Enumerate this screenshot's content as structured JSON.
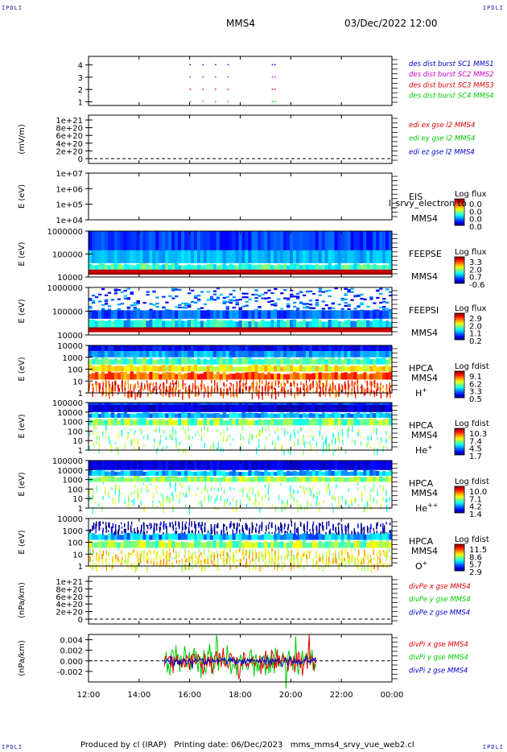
{
  "header": {
    "corner_tl": "IPDLI",
    "corner_tr": "IPDLI",
    "corner_bl": "IPDLI",
    "corner_br": "IPDLI",
    "spacecraft": "MMS4",
    "datetime": "03/Dec/2022 12:00"
  },
  "footer": {
    "produced_by": "Produced by cl (IRAP)",
    "printing_date": "Printing date: 06/Dec/2023",
    "file": "mms_mms4_srvy_vue_web2.cl"
  },
  "colors": {
    "red": "#dd0000",
    "green": "#00cc00",
    "blue": "#0000cc",
    "magenta": "#cc00cc"
  },
  "chart_data": [
    {
      "id": "burst",
      "type": "scatter",
      "ylabel": "",
      "yticks": [
        "4",
        "3",
        "2",
        "1"
      ],
      "legend": [
        "des dist burst SC1 MMS1",
        "des dist burst SC2 MMS2",
        "des dist burst SC3 MMS3",
        "des dist burst SC4 MMS4"
      ],
      "series_colors": [
        "#0000cc",
        "#cc00cc",
        "#dd0000",
        "#00cc00"
      ],
      "x": [
        16.0,
        16.5,
        17.0,
        17.5,
        19.25,
        19.35
      ]
    },
    {
      "id": "edi",
      "type": "line",
      "ylabel": "(mV/m)",
      "yticks": [
        "1e+21",
        "8e+20",
        "6e+20",
        "4e+20",
        "2e+20",
        "0"
      ],
      "legend": [
        "edi ex gse l2 MMS4",
        "edi ey gse l2 MMS4",
        "edi ez gse l2 MMS4"
      ],
      "series_colors": [
        "#dd0000",
        "#00cc00",
        "#0000cc"
      ]
    },
    {
      "id": "eis",
      "type": "heatmap",
      "ylabel": "E (eV)",
      "yticks": [
        "1e+07",
        "1e+06",
        "1e+05",
        "1e+04"
      ],
      "instrument": "EIS",
      "overlay_text": "l_srvy_electron to",
      "spacecraft": "MMS4",
      "colorbar_title": "Log flux",
      "colorbar_ticks": [
        "0.0",
        "0.0",
        "0.0",
        "0.0"
      ]
    },
    {
      "id": "feepse",
      "type": "heatmap",
      "ylabel": "E (eV)",
      "yticks": [
        "1000000",
        "100000",
        "10000"
      ],
      "instrument": "FEEPSE",
      "spacecraft": "MMS4",
      "colorbar_title": "Log flux",
      "colorbar_ticks": [
        "3.3",
        "2.0",
        "0.7",
        "-0.6"
      ]
    },
    {
      "id": "feepsi",
      "type": "heatmap",
      "ylabel": "E (eV)",
      "yticks": [
        "1000000",
        "100000",
        "10000"
      ],
      "instrument": "FEEPSI",
      "spacecraft": "MMS4",
      "colorbar_title": "Log flux",
      "colorbar_ticks": [
        "2.9",
        "2.0",
        "1.1",
        "0.2"
      ]
    },
    {
      "id": "hpca_h",
      "type": "heatmap",
      "ylabel": "E (eV)",
      "yticks": [
        "10000",
        "1000",
        "100",
        "10",
        "1"
      ],
      "instrument": "HPCA",
      "spacecraft": "MMS4",
      "species": "H",
      "charge": "+",
      "colorbar_title": "Log fdist",
      "colorbar_ticks": [
        "9.1",
        "6.2",
        "3.3",
        "0.5"
      ]
    },
    {
      "id": "hpca_he",
      "type": "heatmap",
      "ylabel": "E (eV)",
      "yticks": [
        "100000",
        "10000",
        "1000",
        "100",
        "10",
        "1"
      ],
      "instrument": "HPCA",
      "spacecraft": "MMS4",
      "species": "He",
      "charge": "+",
      "colorbar_title": "Log fdist",
      "colorbar_ticks": [
        "10.3",
        "7.4",
        "4.5",
        "1.7"
      ]
    },
    {
      "id": "hpca_hepp",
      "type": "heatmap",
      "ylabel": "E (eV)",
      "yticks": [
        "100000",
        "10000",
        "1000",
        "100",
        "10",
        "1"
      ],
      "instrument": "HPCA",
      "spacecraft": "MMS4",
      "species": "He",
      "charge": "++",
      "colorbar_title": "Log fdist",
      "colorbar_ticks": [
        "10.0",
        "7.1",
        "4.2",
        "1.4"
      ]
    },
    {
      "id": "hpca_o",
      "type": "heatmap",
      "ylabel": "E (eV)",
      "yticks": [
        "10000",
        "1000",
        "100",
        "10",
        "1"
      ],
      "instrument": "HPCA",
      "spacecraft": "MMS4",
      "species": "O",
      "charge": "+",
      "colorbar_title": "Log fdist",
      "colorbar_ticks": [
        "11.5",
        "8.6",
        "5.7",
        "2.9"
      ]
    },
    {
      "id": "divpe",
      "type": "line",
      "ylabel": "(nPa/km)",
      "yticks": [
        "1e+21",
        "8e+20",
        "6e+20",
        "4e+20",
        "2e+20",
        "0"
      ],
      "legend": [
        "divPe x gse MMS4",
        "divPe y gse MMS4",
        "divPe z gse MMS4"
      ],
      "series_colors": [
        "#dd0000",
        "#00cc00",
        "#0000cc"
      ]
    },
    {
      "id": "divpi",
      "type": "line",
      "ylabel": "(nPa/km)",
      "yticks": [
        "0.004",
        "0.002",
        "0.000",
        "-0.002"
      ],
      "ylim": [
        -0.004,
        0.005
      ],
      "legend": [
        "divPi x gse MMS4",
        "divPi y gse MMS4",
        "divPi z gse MMS4"
      ],
      "series_colors": [
        "#dd0000",
        "#00cc00",
        "#0000cc"
      ],
      "active_range_hours": [
        15.0,
        21.0
      ]
    }
  ],
  "time_axis": {
    "ticks": [
      "12:00",
      "14:00",
      "16:00",
      "18:00",
      "20:00",
      "22:00",
      "00:00"
    ],
    "range_hours": [
      12,
      24
    ]
  }
}
